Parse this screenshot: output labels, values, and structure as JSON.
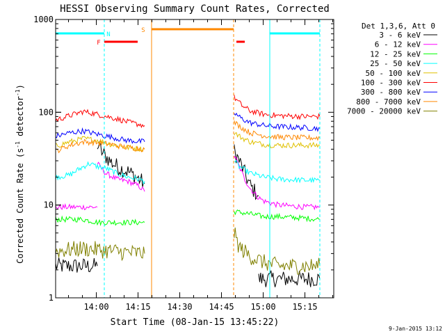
{
  "chart_data": {
    "type": "line",
    "title": "HESSI Observing Summary Count Rates, Corrected",
    "xlabel": "Start Time (08-Jan-15 13:45:22)",
    "ylabel": "Corrected Count Rate (s",
    "ylabel_sup": "-1",
    "ylabel_mid": " detector",
    "ylabel_sup2": "-1",
    "ylabel_end": ")",
    "y_scale": "log",
    "ylim": [
      1,
      1000
    ],
    "y_ticks": [
      {
        "value": 1,
        "label": "1"
      },
      {
        "value": 10,
        "label": "10"
      },
      {
        "value": 100,
        "label": "100"
      },
      {
        "value": 1000,
        "label": "1000"
      }
    ],
    "xlim_minutes": [
      0,
      100
    ],
    "x_ticks": [
      {
        "label": "14:00",
        "minute": 14.63
      },
      {
        "label": "14:15",
        "minute": 29.63
      },
      {
        "label": "14:30",
        "minute": 44.63
      },
      {
        "label": "14:45",
        "minute": 59.63
      },
      {
        "label": "15:00",
        "minute": 74.63
      },
      {
        "label": "15:15",
        "minute": 89.63
      }
    ],
    "legend_placement": "right",
    "legend_header": "Det 1,3,6, Att 0",
    "series": [
      {
        "name": "3 - 6 keV",
        "color": "#000000",
        "segments": [
          {
            "x": [
              0,
              5,
              10,
              15
            ],
            "y": [
              2.2,
              2.2,
              2.2,
              2.2
            ]
          },
          {
            "x": [
              15,
              17,
              20,
              23,
              26,
              29,
              32
            ],
            "y": [
              45,
              36,
              29,
              25,
              23,
              20,
              17
            ]
          },
          {
            "x": [
              64.2,
              66,
              68,
              70,
              73
            ],
            "y": [
              38,
              30,
              22,
              16,
              12.5
            ]
          },
          {
            "x": [
              73,
              80,
              88,
              95
            ],
            "y": [
              1.6,
              1.6,
              1.6,
              1.6
            ]
          }
        ]
      },
      {
        "name": "6 - 12 keV",
        "color": "#ff00ff",
        "segments": [
          {
            "x": [
              0,
              5,
              10,
              15
            ],
            "y": [
              9.5,
              9.5,
              9.5,
              9.5
            ]
          },
          {
            "x": [
              15,
              18,
              22,
              26,
              30,
              32
            ],
            "y": [
              28,
              22,
              19,
              18,
              16,
              14
            ]
          },
          {
            "x": [
              64.2,
              66,
              68,
              70,
              73,
              75,
              80,
              90,
              95
            ],
            "y": [
              35,
              26,
              19,
              15,
              12,
              11,
              10,
              9.5,
              9.5
            ]
          }
        ]
      },
      {
        "name": "12 - 25 keV",
        "color": "#00ff00",
        "segments": [
          {
            "x": [
              0,
              5,
              10,
              15,
              20,
              25,
              32
            ],
            "y": [
              7,
              7,
              7,
              6.5,
              6.5,
              6.5,
              6.5
            ]
          },
          {
            "x": [
              64.2,
              70,
              75,
              80,
              90,
              95
            ],
            "y": [
              8.5,
              8,
              7.5,
              7.5,
              7.2,
              7
            ]
          }
        ]
      },
      {
        "name": "25 - 50 keV",
        "color": "#00ffff",
        "segments": [
          {
            "x": [
              0,
              5,
              8,
              12,
              15,
              18,
              22,
              26,
              30,
              32
            ],
            "y": [
              20,
              21,
              24,
              28,
              26,
              25,
              22,
              20,
              19,
              18
            ]
          },
          {
            "x": [
              64.2,
              66,
              70,
              75,
              80,
              90,
              95
            ],
            "y": [
              30,
              26,
              22,
              20,
              19,
              18.5,
              18.5
            ]
          }
        ]
      },
      {
        "name": "50 - 100 keV",
        "color": "#e0c000",
        "segments": [
          {
            "x": [
              0,
              5,
              10,
              15,
              20,
              25,
              32
            ],
            "y": [
              43,
              48,
              52,
              50,
              45,
              42,
              40
            ]
          },
          {
            "x": [
              64.2,
              67,
              70,
              75,
              80,
              90,
              95
            ],
            "y": [
              60,
              53,
              48,
              45,
              44,
              44,
              44
            ]
          }
        ]
      },
      {
        "name": "100 - 300 keV",
        "color": "#ff0000",
        "segments": [
          {
            "x": [
              0,
              5,
              10,
              13,
              17,
              22,
              27,
              32
            ],
            "y": [
              82,
              92,
              102,
              98,
              92,
              85,
              77,
              72
            ]
          },
          {
            "x": [
              64.2,
              67,
              70,
              75,
              80,
              90,
              95
            ],
            "y": [
              145,
              118,
              103,
              95,
              92,
              90,
              90
            ]
          }
        ]
      },
      {
        "name": "300 - 800 keV",
        "color": "#0000ff",
        "segments": [
          {
            "x": [
              0,
              5,
              10,
              15,
              20,
              25,
              32
            ],
            "y": [
              55,
              60,
              63,
              58,
              54,
              50,
              48
            ]
          },
          {
            "x": [
              64.2,
              67,
              70,
              75,
              80,
              90,
              95
            ],
            "y": [
              98,
              85,
              77,
              72,
              70,
              68,
              67
            ]
          }
        ]
      },
      {
        "name": "800 - 7000 keV",
        "color": "#ff8800",
        "segments": [
          {
            "x": [
              0,
              5,
              10,
              15,
              20,
              25,
              32
            ],
            "y": [
              38,
              44,
              48,
              47,
              45,
              42,
              40
            ]
          },
          {
            "x": [
              64.2,
              67,
              70,
              75,
              80,
              90,
              95
            ],
            "y": [
              78,
              68,
              60,
              56,
              54,
              53,
              53
            ]
          }
        ]
      },
      {
        "name": "7000 - 20000 keV",
        "color": "#808000",
        "segments": [
          {
            "x": [
              0,
              5,
              10,
              15,
              20,
              25,
              32
            ],
            "y": [
              3.2,
              3.3,
              3.4,
              3.3,
              3.2,
              3.1,
              3.0
            ]
          },
          {
            "x": [
              64.2,
              66,
              70,
              75,
              80,
              90,
              95
            ],
            "y": [
              5,
              3.5,
              2.8,
              2.4,
              2.2,
              2.2,
              2.2
            ]
          }
        ]
      }
    ],
    "flags": [
      {
        "label": "N",
        "color": "#00ffff",
        "show_label": true,
        "label_minute": 19,
        "bars": [
          {
            "start": 0,
            "end": 17.5
          },
          {
            "start": 77,
            "end": 95
          }
        ],
        "level": 0.95,
        "lines": [
          {
            "minute": 17.5,
            "dashed": true
          },
          {
            "minute": 77,
            "dashed": false
          },
          {
            "minute": 95,
            "dashed": true
          }
        ]
      },
      {
        "label": "F",
        "color": "#ff0000",
        "show_label": true,
        "label_minute": 15.5,
        "bars": [
          {
            "start": 17.5,
            "end": 29.5
          },
          {
            "start": 65,
            "end": 68
          }
        ],
        "level": 0.92,
        "lines": []
      },
      {
        "label": "S",
        "color": "#ff8800",
        "show_label": true,
        "label_minute": 31.5,
        "bars": [
          {
            "start": 34.5,
            "end": 64
          }
        ],
        "level": 0.965,
        "lines": [
          {
            "minute": 34.5,
            "dashed": false
          },
          {
            "minute": 64,
            "dashed": true
          }
        ]
      }
    ]
  },
  "footer_date": "9-Jan-2015 13:12"
}
